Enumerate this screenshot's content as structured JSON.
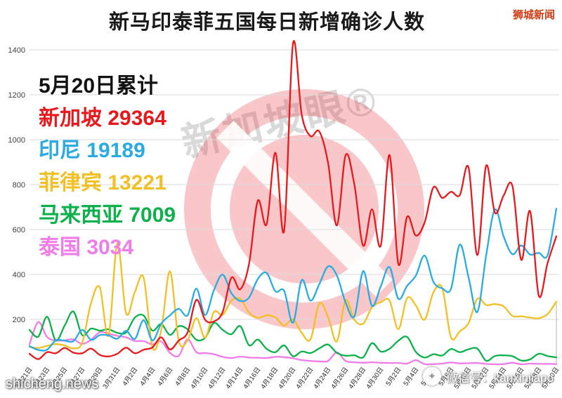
{
  "header": {
    "title": "新马印泰菲五国每日新增确诊人数",
    "brand": "狮城新闻"
  },
  "legend": {
    "date_label": "5月20日累计",
    "items": [
      {
        "name": "新加坡",
        "value": "29364",
        "color": "#e8191c"
      },
      {
        "name": "印尼",
        "value": "19189",
        "color": "#29abe2"
      },
      {
        "name": "菲律宾",
        "value": "13221",
        "color": "#f2c024"
      },
      {
        "name": "马来西亚",
        "value": "7009",
        "color": "#0db14b"
      },
      {
        "name": "泰国",
        "value": "3034",
        "color": "#f07ce8"
      }
    ]
  },
  "watermarks": {
    "center_text": "新加坡眼®",
    "bottom_left": "shicheng.news",
    "bottom_right": "微信号：kanxinjiapo"
  },
  "chart_data": {
    "type": "line",
    "title": "新马印泰菲五国每日新增确诊人数",
    "xlabel": "",
    "ylabel": "",
    "ylim": [
      0,
      1450
    ],
    "yticks": [
      200,
      400,
      600,
      800,
      1000,
      1200,
      1400
    ],
    "grid": true,
    "legend_position": "upper-left",
    "x_tick_every": 2,
    "x": [
      "3月21日",
      "3月22日",
      "3月23日",
      "3月24日",
      "3月25日",
      "3月26日",
      "3月27日",
      "3月28日",
      "3月29日",
      "3月30日",
      "3月31日",
      "4月1日",
      "4月2日",
      "4月3日",
      "4月4日",
      "4月5日",
      "4月6日",
      "4月7日",
      "4月8日",
      "4月9日",
      "4月10日",
      "4月11日",
      "4月12日",
      "4月13日",
      "4月14日",
      "4月15日",
      "4月16日",
      "4月17日",
      "4月18日",
      "4月19日",
      "4月20日",
      "4月21日",
      "4月22日",
      "4月23日",
      "4月24日",
      "4月25日",
      "4月26日",
      "4月27日",
      "4月28日",
      "4月29日",
      "4月30日",
      "5月1日",
      "5月2日",
      "5月3日",
      "5月4日",
      "5月5日",
      "5月6日",
      "5月7日",
      "5月8日",
      "5月9日",
      "5月10日",
      "5月11日",
      "5月12日",
      "5月13日",
      "5月14日",
      "5月15日",
      "5月16日",
      "5月17日",
      "5月18日",
      "5月19日",
      "5月20日"
    ],
    "series": [
      {
        "name": "新加坡",
        "color": "#e8191c",
        "values": [
          47,
          23,
          54,
          49,
          73,
          52,
          49,
          70,
          42,
          35,
          47,
          74,
          49,
          65,
          75,
          120,
          66,
          106,
          142,
          287,
          198,
          191,
          233,
          386,
          334,
          447,
          728,
          623,
          942,
          596,
          1426,
          1111,
          1016,
          1037,
          897,
          618,
          931,
          799,
          528,
          690,
          528,
          932,
          447,
          657,
          573,
          632,
          788,
          741,
          768,
          753,
          876,
          486,
          884,
          675,
          752,
          793,
          465,
          682,
          305,
          451,
          570
        ]
      },
      {
        "name": "印尼",
        "color": "#29abe2",
        "values": [
          81,
          64,
          65,
          107,
          105,
          103,
          153,
          109,
          130,
          129,
          114,
          149,
          113,
          196,
          106,
          181,
          218,
          247,
          218,
          337,
          219,
          330,
          399,
          316,
          282,
          297,
          380,
          407,
          325,
          327,
          185,
          375,
          283,
          357,
          436,
          396,
          275,
          214,
          415,
          260,
          347,
          433,
          292,
          349,
          395,
          484,
          367,
          338,
          336,
          533,
          387,
          233,
          484,
          689,
          568,
          490,
          529,
          489,
          496,
          486,
          693
        ]
      },
      {
        "name": "菲律宾",
        "color": "#f2c024",
        "values": [
          77,
          73,
          82,
          90,
          84,
          71,
          96,
          272,
          343,
          128,
          538,
          227,
          322,
          385,
          76,
          152,
          414,
          104,
          106,
          206,
          119,
          233,
          220,
          284,
          291,
          230,
          207,
          218,
          209,
          172,
          200,
          140,
          111,
          271,
          211,
          102,
          285,
          198,
          181,
          254,
          276,
          284,
          156,
          295,
          262,
          199,
          321,
          339,
          120,
          147,
          184,
          292,
          264,
          268,
          258,
          215,
          214,
          208,
          205,
          224,
          279
        ]
      },
      {
        "name": "马来西亚",
        "color": "#0db14b",
        "values": [
          153,
          123,
          212,
          106,
          172,
          235,
          130,
          159,
          150,
          156,
          140,
          142,
          208,
          217,
          150,
          179,
          131,
          170,
          156,
          109,
          118,
          184,
          153,
          134,
          170,
          85,
          110,
          69,
          54,
          84,
          36,
          57,
          50,
          71,
          88,
          51,
          38,
          40,
          31,
          94,
          57,
          69,
          105,
          122,
          55,
          30,
          45,
          39,
          68,
          54,
          67,
          70,
          16,
          37,
          40,
          36,
          17,
          22,
          47,
          37,
          31
        ]
      },
      {
        "name": "泰国",
        "color": "#f07ce8",
        "values": [
          89,
          188,
          122,
          106,
          107,
          111,
          91,
          109,
          143,
          136,
          127,
          120,
          104,
          103,
          89,
          102,
          51,
          38,
          111,
          54,
          50,
          45,
          33,
          28,
          34,
          30,
          29,
          28,
          33,
          32,
          27,
          19,
          15,
          13,
          15,
          53,
          15,
          9,
          7,
          9,
          7,
          6,
          6,
          3,
          18,
          1,
          1,
          3,
          8,
          4,
          5,
          6,
          2,
          0,
          1,
          7,
          0,
          3,
          2,
          2,
          1
        ]
      }
    ]
  }
}
